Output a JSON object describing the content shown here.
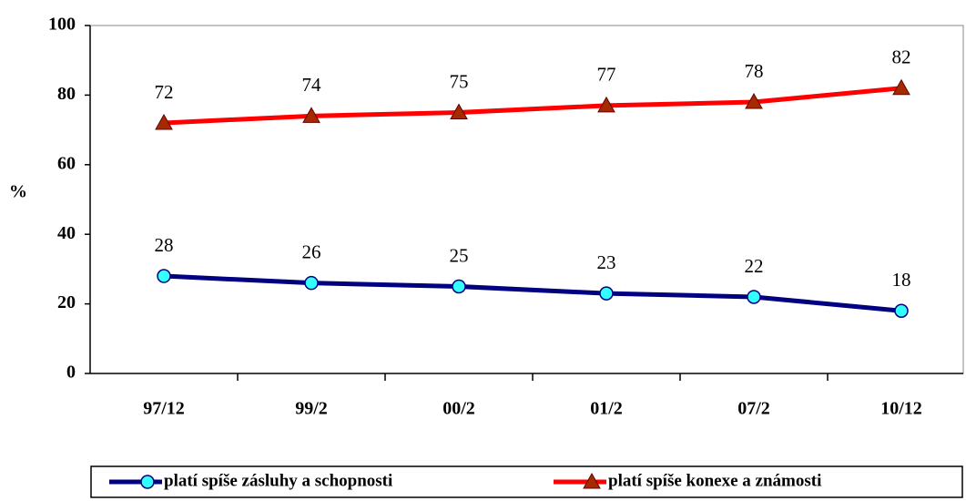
{
  "chart_data": {
    "type": "line",
    "categories": [
      "97/12",
      "99/2",
      "00/2",
      "01/2",
      "07/2",
      "10/12"
    ],
    "y_label": "%",
    "series": [
      {
        "name": "platí spíše zásluhy a schopnosti",
        "color": "#000080",
        "marker": "circle",
        "marker_color": "#33ffff",
        "values": [
          28,
          26,
          25,
          23,
          22,
          18
        ]
      },
      {
        "name": "platí spíše konexe a známosti",
        "color": "#ff0000",
        "marker": "triangle",
        "marker_color": "#a52a00",
        "values": [
          72,
          74,
          75,
          77,
          78,
          82
        ]
      }
    ],
    "ylim": [
      0,
      100
    ],
    "yticks": [
      0,
      20,
      40,
      60,
      80,
      100
    ],
    "grid": false,
    "legend": "bottom"
  }
}
